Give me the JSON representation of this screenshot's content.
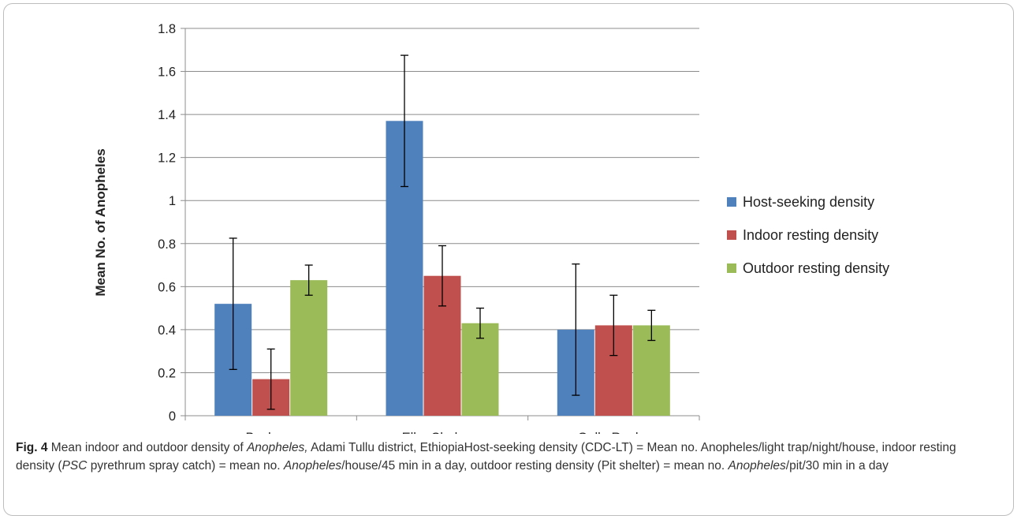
{
  "chart_data": {
    "type": "bar",
    "categories": [
      "Bochesa",
      "Elka Chelemo",
      "Gallo Raphe"
    ],
    "series": [
      {
        "name": "Host-seeking density",
        "values": [
          0.52,
          1.37,
          0.4
        ],
        "error": [
          0.305,
          0.305,
          0.305
        ],
        "color": "#4f81bd"
      },
      {
        "name": "Indoor resting density",
        "values": [
          0.17,
          0.65,
          0.42
        ],
        "error": [
          0.14,
          0.14,
          0.14
        ],
        "color": "#c0504d"
      },
      {
        "name": "Outdoor resting density",
        "values": [
          0.63,
          0.43,
          0.42
        ],
        "error": [
          0.07,
          0.07,
          0.07
        ],
        "color": "#9bbb59"
      }
    ],
    "title": "",
    "xlabel": "",
    "ylabel": "Mean No. of Anopheles",
    "ylim": [
      0,
      1.8
    ],
    "yticks": [
      "0",
      "0.2",
      "0.4",
      "0.6",
      "0.8",
      "1",
      "1.2",
      "1.4",
      "1.6",
      "1.8"
    ],
    "grid": true,
    "legend": "right"
  },
  "caption": {
    "label": "Fig. 4",
    "parts": [
      {
        "t": "  Mean indoor and outdoor density of ",
        "i": false
      },
      {
        "t": "Anopheles,",
        "i": true
      },
      {
        "t": " Adami Tullu district, EthiopiaHost-seeking density (CDC-LT) = Mean no. Anopheles/light trap/night/house, indoor resting density (",
        "i": false
      },
      {
        "t": "PSC",
        "i": true
      },
      {
        "t": " pyrethrum spray catch) = mean no. ",
        "i": false
      },
      {
        "t": "Anopheles",
        "i": true
      },
      {
        "t": "/house/45 min in a day, outdoor resting density (Pit shelter) = mean no. ",
        "i": false
      },
      {
        "t": "Anopheles",
        "i": true
      },
      {
        "t": "/pit/30 min in a day",
        "i": false
      }
    ]
  }
}
